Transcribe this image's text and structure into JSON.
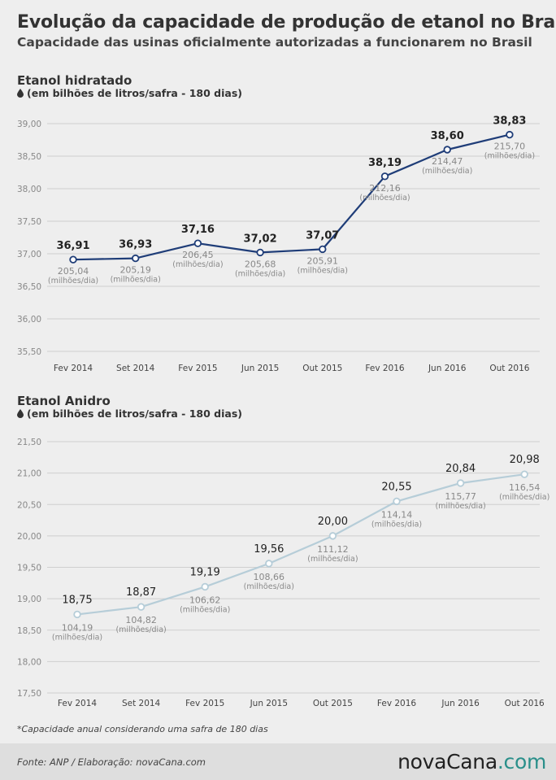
{
  "header": {
    "title": "Evolução da capacidade de produção de etanol no Brasil",
    "subtitle": "Capacidade das usinas oficialmente autorizadas a funcionarem no Brasil"
  },
  "colors": {
    "hidratado": "#1f3d78",
    "anidro": "#b6cdd8",
    "grid": "#cfcfcf",
    "secondary_text": "#888888"
  },
  "icons": {
    "unit_icon": "drop-icon"
  },
  "chart_data": [
    {
      "type": "line",
      "title": "Etanol hidratado",
      "unit": "(em bilhões de litros/safra - 180 dias)",
      "categories": [
        "Fev 2014",
        "Set 2014",
        "Fev 2015",
        "Jun 2015",
        "Out 2015",
        "Fev 2016",
        "Jun 2016",
        "Out 2016"
      ],
      "y_ticks": [
        "35,50",
        "36,00",
        "36,50",
        "37,00",
        "37,50",
        "38,00",
        "38,50",
        "39,00"
      ],
      "ylim": [
        35.5,
        39.0
      ],
      "grid": true,
      "series": [
        {
          "values": [
            36.91,
            36.93,
            37.16,
            37.02,
            37.07,
            38.19,
            38.6,
            38.83
          ],
          "value_labels": [
            "36,91",
            "36,93",
            "37,16",
            "37,02",
            "37,07",
            "38,19",
            "38,60",
            "38,83"
          ],
          "secondary_labels": [
            "205,04",
            "205,19",
            "206,45",
            "205,68",
            "205,91",
            "212,16",
            "214,47",
            "215,70"
          ],
          "secondary_unit": "(milhões/dia)"
        }
      ]
    },
    {
      "type": "line",
      "title": "Etanol Anidro",
      "unit": "(em bilhões de litros/safra - 180 dias)",
      "categories": [
        "Fev 2014",
        "Set 2014",
        "Fev 2015",
        "Jun 2015",
        "Out 2015",
        "Fev 2016",
        "Jun 2016",
        "Out 2016"
      ],
      "y_ticks": [
        "17,50",
        "18,00",
        "18,50",
        "19,00",
        "19,50",
        "20,00",
        "20,50",
        "21,00",
        "21,50"
      ],
      "ylim": [
        17.5,
        21.5
      ],
      "grid": true,
      "series": [
        {
          "values": [
            18.75,
            18.87,
            19.19,
            19.56,
            20.0,
            20.55,
            20.84,
            20.98
          ],
          "value_labels": [
            "18,75",
            "18,87",
            "19,19",
            "19,56",
            "20,00",
            "20,55",
            "20,84",
            "20,98"
          ],
          "secondary_labels": [
            "104,19",
            "104,82",
            "106,62",
            "108,66",
            "111,12",
            "114,14",
            "115,77",
            "116,54"
          ],
          "secondary_unit": "(milhões/dia)"
        }
      ]
    }
  ],
  "footnote": "*Capacidade anual considerando uma safra de 180 dias",
  "footer": {
    "source": "Fonte: ANP / Elaboração: novaCana.com",
    "logo_main": "novaCana",
    "logo_suffix": ".com"
  }
}
